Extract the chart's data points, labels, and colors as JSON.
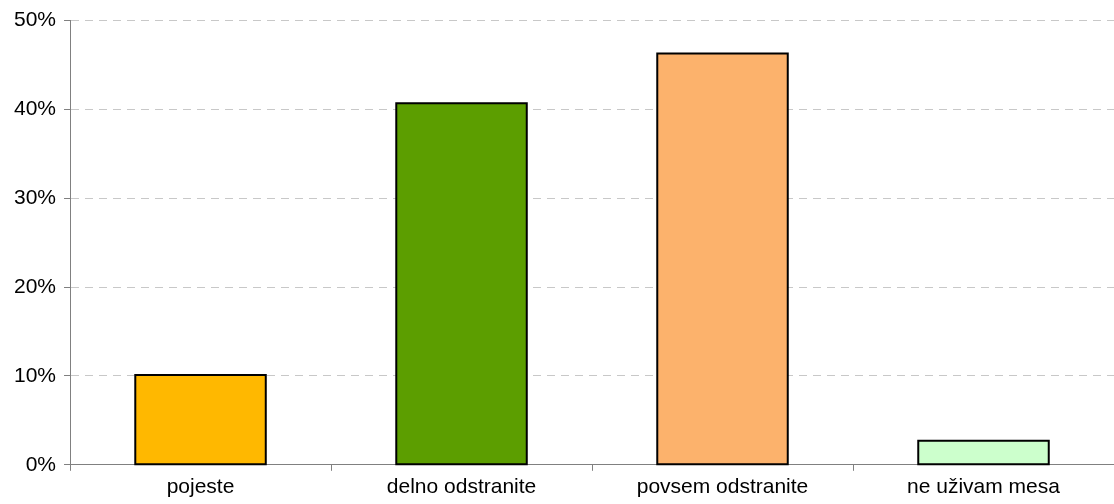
{
  "chart_data": {
    "type": "bar",
    "categories": [
      "pojeste",
      "delno odstranite",
      "povsem odstranite",
      "ne uživam mesa"
    ],
    "values": [
      10.1,
      40.7,
      46.3,
      2.7
    ],
    "colors": [
      "#ffb800",
      "#5c9e00",
      "#fcb26c",
      "#ccffcc"
    ],
    "ylim": [
      0,
      50
    ],
    "yticks": [
      {
        "value": 0,
        "label": "0%"
      },
      {
        "value": 10,
        "label": "10%"
      },
      {
        "value": 20,
        "label": "20%"
      },
      {
        "value": 30,
        "label": "30%"
      },
      {
        "value": 40,
        "label": "40%"
      },
      {
        "value": 50,
        "label": "50%"
      }
    ],
    "grid": "y"
  }
}
